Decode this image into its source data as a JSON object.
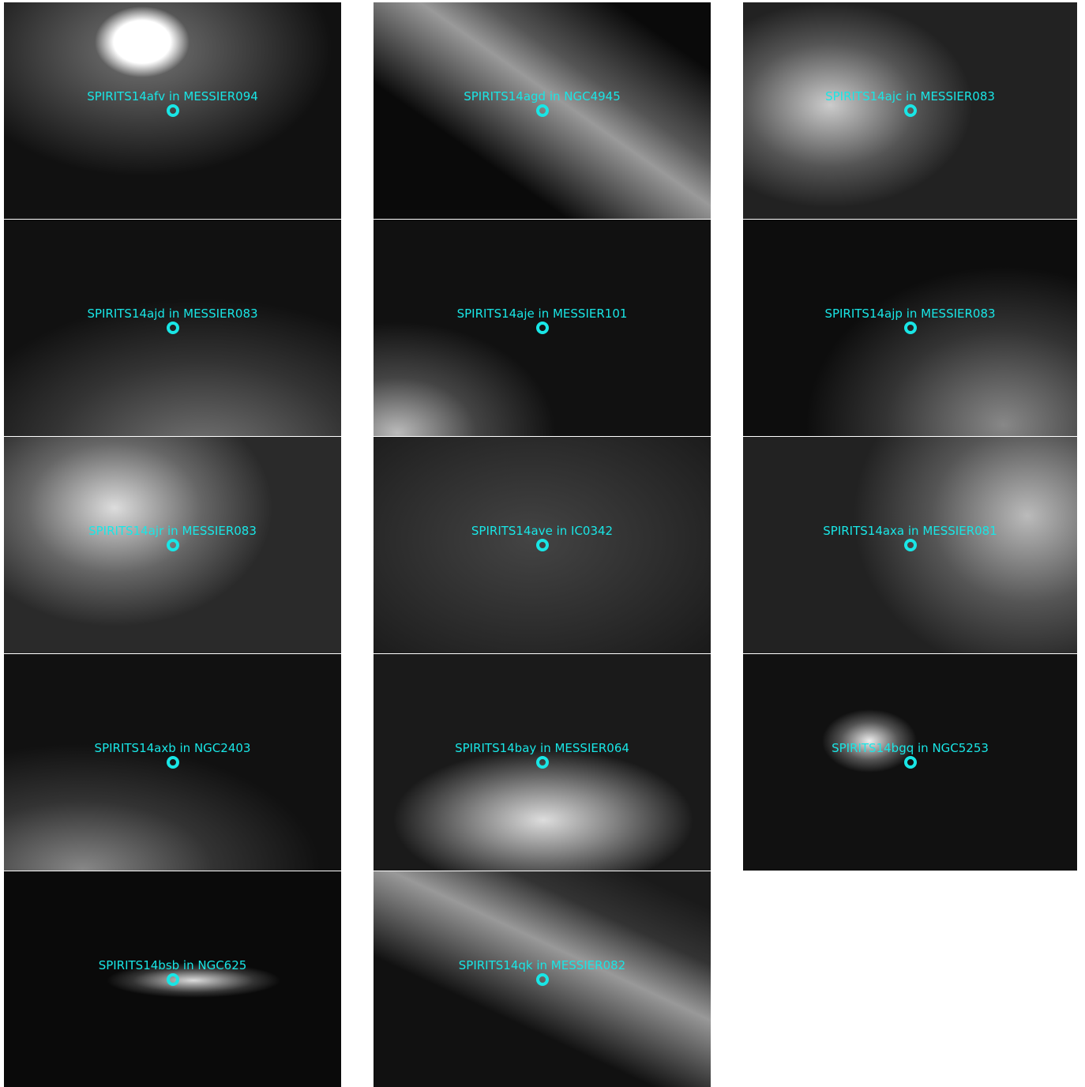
{
  "panels": [
    {
      "label": "SPIRITS14afv in MESSIER094"
    },
    {
      "label": "SPIRITS14agd in NGC4945"
    },
    {
      "label": "SPIRITS14ajc in MESSIER083"
    },
    {
      "label": "SPIRITS14ajd in MESSIER083"
    },
    {
      "label": "SPIRITS14aje in MESSIER101"
    },
    {
      "label": "SPIRITS14ajp in MESSIER083"
    },
    {
      "label": "SPIRITS14ajr in MESSIER083"
    },
    {
      "label": "SPIRITS14ave in IC0342"
    },
    {
      "label": "SPIRITS14axa in MESSIER081"
    },
    {
      "label": "SPIRITS14axb in NGC2403"
    },
    {
      "label": "SPIRITS14bay in MESSIER064"
    },
    {
      "label": "SPIRITS14bgq in NGC5253"
    },
    {
      "label": "SPIRITS14bsb in NGC625"
    },
    {
      "label": "SPIRITS14qk in MESSIER082"
    }
  ]
}
